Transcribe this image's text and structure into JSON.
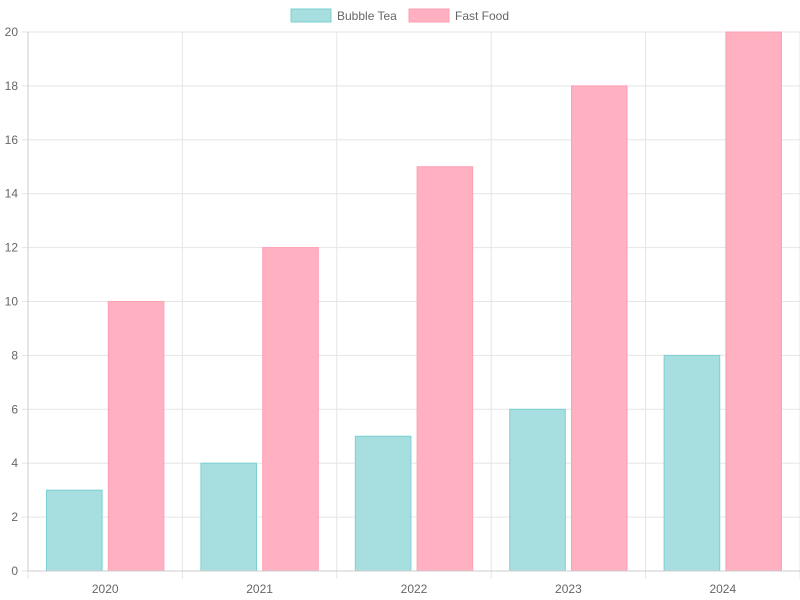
{
  "colors": {
    "bubble_tea_fill": "#a7dfe0",
    "bubble_tea_stroke": "#7ccfd1",
    "fast_food_fill": "#ffb1c1",
    "fast_food_stroke": "#ff9fb4",
    "grid": "#e5e5e5",
    "text": "#666666"
  },
  "chart_data": {
    "type": "bar",
    "categories": [
      "2020",
      "2021",
      "2022",
      "2023",
      "2024"
    ],
    "series": [
      {
        "name": "Bubble Tea",
        "values": [
          3,
          4,
          5,
          6,
          8
        ]
      },
      {
        "name": "Fast Food",
        "values": [
          10,
          12,
          15,
          18,
          20
        ]
      }
    ],
    "ylim": [
      0,
      20
    ],
    "y_ticks": [
      "0",
      "2",
      "4",
      "6",
      "8",
      "10",
      "12",
      "14",
      "16",
      "18",
      "20"
    ],
    "grid": true,
    "legend_position": "top-center"
  }
}
